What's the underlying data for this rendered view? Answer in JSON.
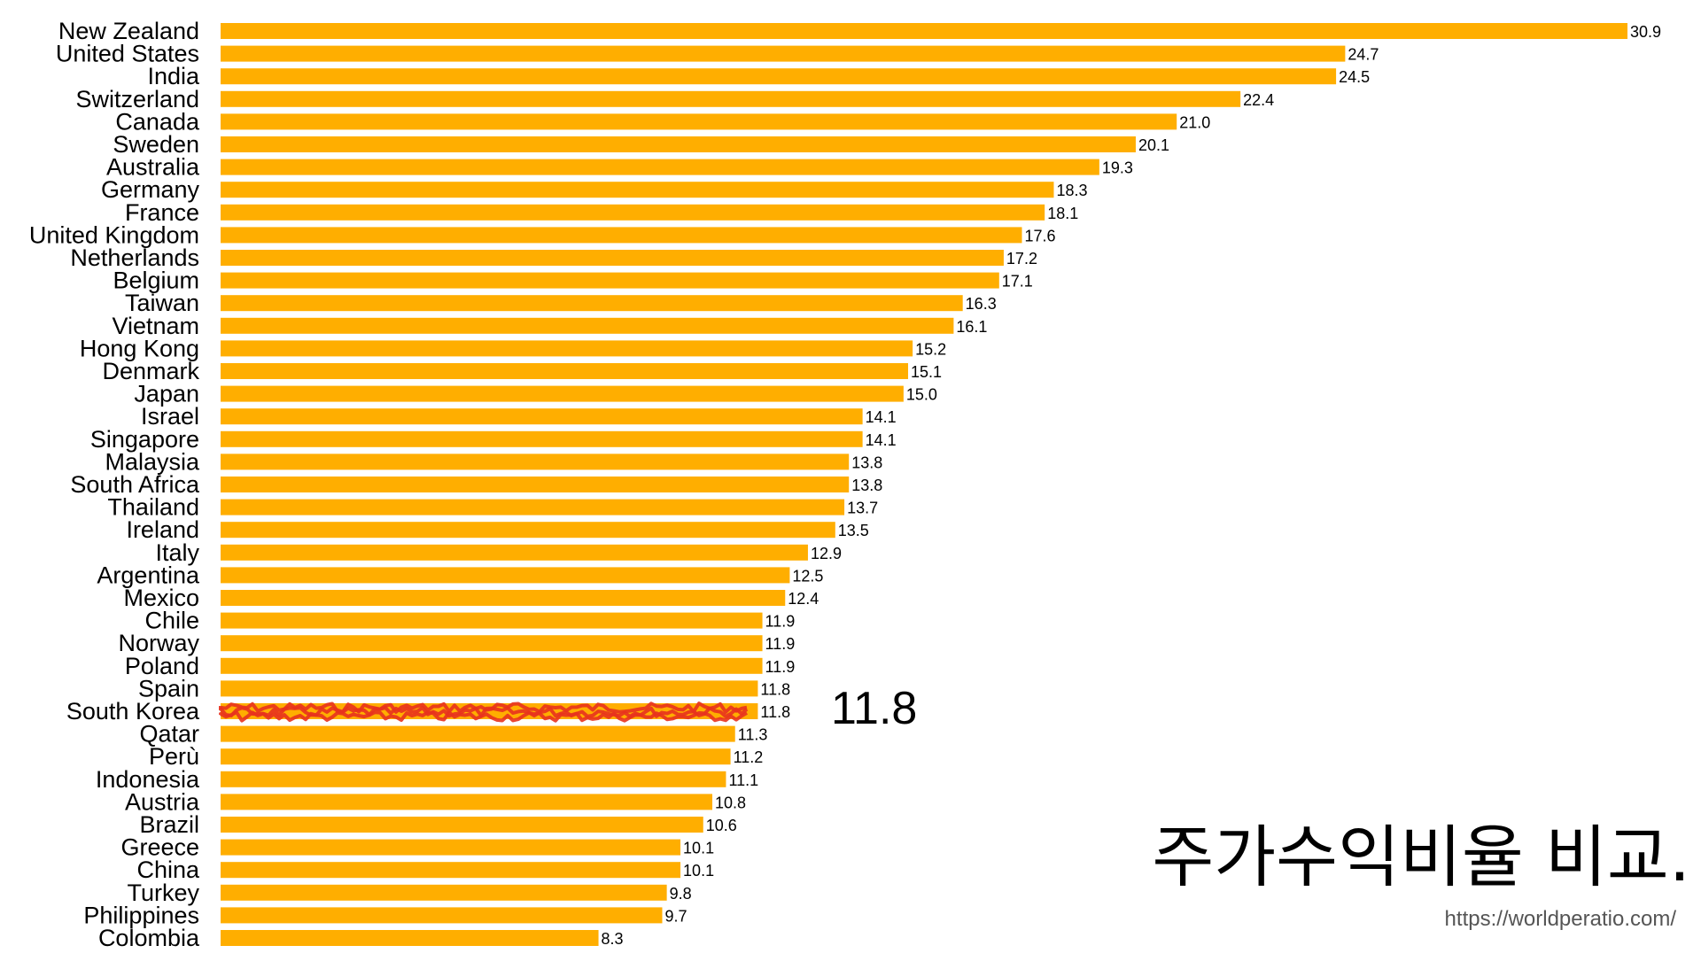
{
  "chart_data": {
    "type": "bar",
    "orientation": "horizontal",
    "categories": [
      "New Zealand",
      "United States",
      "India",
      "Switzerland",
      "Canada",
      "Sweden",
      "Australia",
      "Germany",
      "France",
      "United Kingdom",
      "Netherlands",
      "Belgium",
      "Taiwan",
      "Vietnam",
      "Hong Kong",
      "Denmark",
      "Japan",
      "Israel",
      "Singapore",
      "Malaysia",
      "South Africa",
      "Thailand",
      "Ireland",
      "Italy",
      "Argentina",
      "Mexico",
      "Chile",
      "Norway",
      "Poland",
      "Spain",
      "South Korea",
      "Qatar",
      "Perù",
      "Indonesia",
      "Austria",
      "Brazil",
      "Greece",
      "China",
      "Turkey",
      "Philippines",
      "Colombia"
    ],
    "values": [
      30.9,
      24.7,
      24.5,
      22.4,
      21.0,
      20.1,
      19.3,
      18.3,
      18.1,
      17.6,
      17.2,
      17.1,
      16.3,
      16.1,
      15.2,
      15.1,
      15.0,
      14.1,
      14.1,
      13.8,
      13.8,
      13.7,
      13.5,
      12.9,
      12.5,
      12.4,
      11.9,
      11.9,
      11.9,
      11.8,
      11.8,
      11.3,
      11.2,
      11.1,
      10.8,
      10.6,
      10.1,
      10.1,
      9.8,
      9.7,
      8.3
    ],
    "value_labels": [
      "30.9",
      "24.7",
      "24.5",
      "22.4",
      "21.0",
      "20.1",
      "19.3",
      "18.3",
      "18.1",
      "17.6",
      "17.2",
      "17.1",
      "16.3",
      "16.1",
      "15.2",
      "15.1",
      "15.0",
      "14.1",
      "14.1",
      "13.8",
      "13.8",
      "13.7",
      "13.5",
      "12.9",
      "12.5",
      "12.4",
      "11.9",
      "11.9",
      "11.9",
      "11.8",
      "11.8",
      "11.3",
      "11.2",
      "11.1",
      "10.8",
      "10.6",
      "10.1",
      "10.1",
      "9.8",
      "9.7",
      "8.3"
    ],
    "highlight_category": "South Korea",
    "xlim": [
      0,
      30.9
    ],
    "grid": false,
    "legend": "none"
  },
  "colors": {
    "bar": "#FFAE00",
    "highlight_scribble": "#E8321E",
    "text": "#000000",
    "url_text": "#555555"
  },
  "highlight_value_text": "11.8",
  "title": "주가수익비율 비교.",
  "source_url": "https://worldperatio.com/"
}
